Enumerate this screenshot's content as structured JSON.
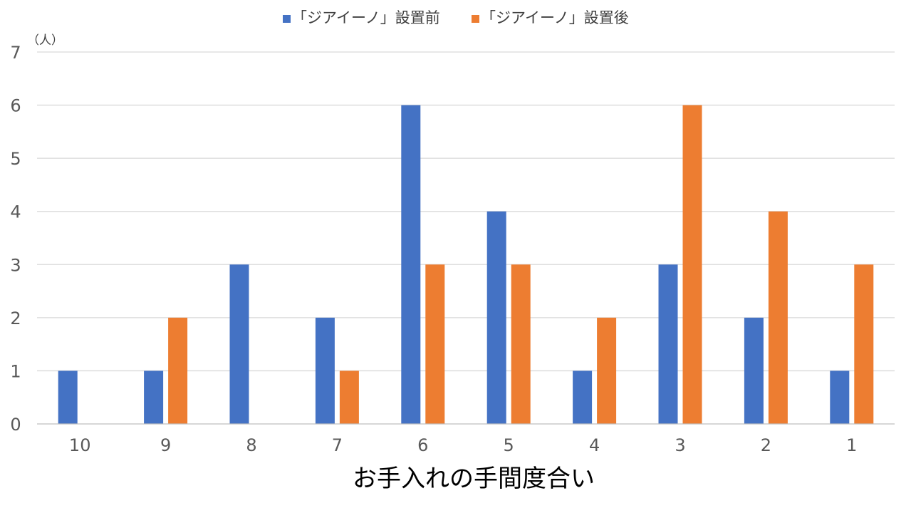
{
  "chart_data": {
    "type": "bar",
    "categories": [
      "10",
      "9",
      "8",
      "7",
      "6",
      "5",
      "4",
      "3",
      "2",
      "1"
    ],
    "series": [
      {
        "name": "「ジアイーノ」設置前",
        "color": "#4472C4",
        "values": [
          1,
          1,
          3,
          2,
          6,
          4,
          1,
          3,
          2,
          1
        ]
      },
      {
        "name": "「ジアイーノ」設置後",
        "color": "#ED7D31",
        "values": [
          0,
          2,
          0,
          1,
          3,
          3,
          2,
          6,
          4,
          3
        ]
      }
    ],
    "xlabel": "お手入れの手間度合い",
    "y_unit": "（人）",
    "ylim": [
      0,
      7
    ],
    "yticks": [
      "0",
      "1",
      "2",
      "3",
      "4",
      "5",
      "6",
      "7"
    ],
    "grid": true,
    "legend_position": "top"
  }
}
